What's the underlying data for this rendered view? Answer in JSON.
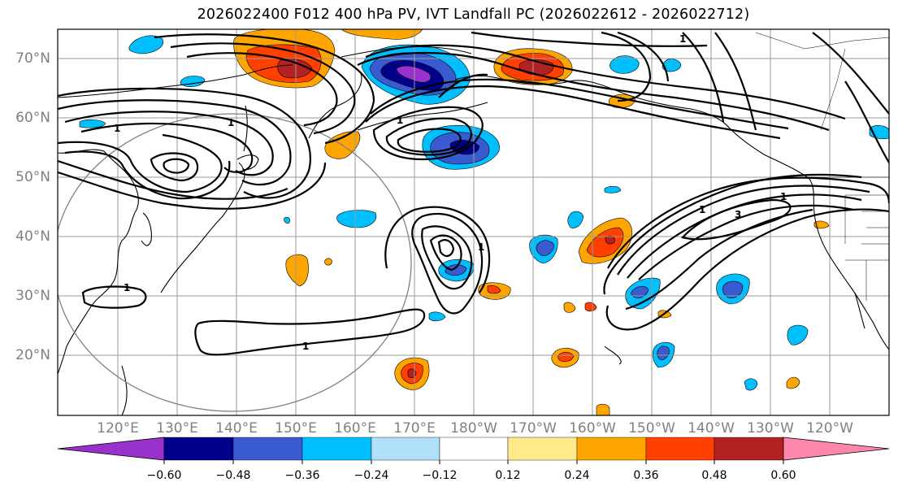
{
  "title": "2026022400 F012 400 hPa PV, IVT Landfall PC (2026022612 - 2026022712)",
  "map": {
    "lat_labels": [
      "70°N",
      "60°N",
      "50°N",
      "40°N",
      "30°N",
      "20°N"
    ],
    "lon_labels": [
      "120°E",
      "130°E",
      "140°E",
      "150°E",
      "160°E",
      "170°E",
      "180°W",
      "170°W",
      "160°W",
      "150°W",
      "140°W",
      "130°W",
      "120°W"
    ],
    "contour_labels": [
      "1",
      "1",
      "1",
      "1",
      "1",
      "3",
      "1",
      "1",
      "1",
      "1"
    ]
  },
  "colorbar": {
    "colors": [
      "#9932cc",
      "#00008b",
      "#3a5bd0",
      "#00bfff",
      "#b0e0fa",
      "#ffffff",
      "#ffe98a",
      "#ffa500",
      "#ff4000",
      "#b22222",
      "#ff88aa"
    ],
    "tick_labels": [
      "−0.60",
      "−0.48",
      "−0.36",
      "−0.24",
      "−0.12",
      "0.12",
      "0.24",
      "0.36",
      "0.48",
      "0.60"
    ]
  },
  "colors": {
    "grid": "#9a9a9a",
    "coast": "#000000",
    "contour": "#000000",
    "label": "#808080"
  }
}
